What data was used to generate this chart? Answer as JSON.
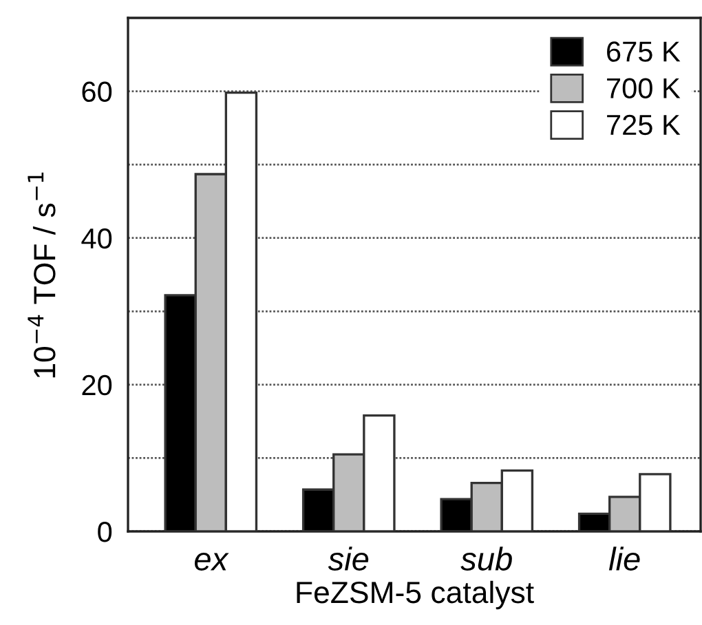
{
  "chart_data": {
    "type": "bar",
    "xlabel": "FeZSM-5 catalyst",
    "ylabel": "10$^{−4}$ TOF / s$^{−1}$",
    "categories": [
      "ex",
      "sie",
      "sub",
      "lie"
    ],
    "series": [
      {
        "name": "675 K",
        "color": "#000000",
        "values": [
          32.2,
          5.7,
          4.4,
          2.4
        ]
      },
      {
        "name": "700 K",
        "color": "#bdbdbd",
        "values": [
          48.7,
          10.5,
          6.6,
          4.7
        ]
      },
      {
        "name": "725 K",
        "color": "#ffffff",
        "values": [
          59.8,
          15.8,
          8.3,
          7.8
        ]
      }
    ],
    "ylim": [
      0,
      70
    ],
    "yticks": [
      0,
      {
        "value": 10,
        "label": null
      },
      20,
      {
        "value": 30,
        "label": null
      },
      40,
      {
        "value": 50,
        "label": null
      },
      60
    ],
    "grid": "y",
    "legend": "top right"
  }
}
